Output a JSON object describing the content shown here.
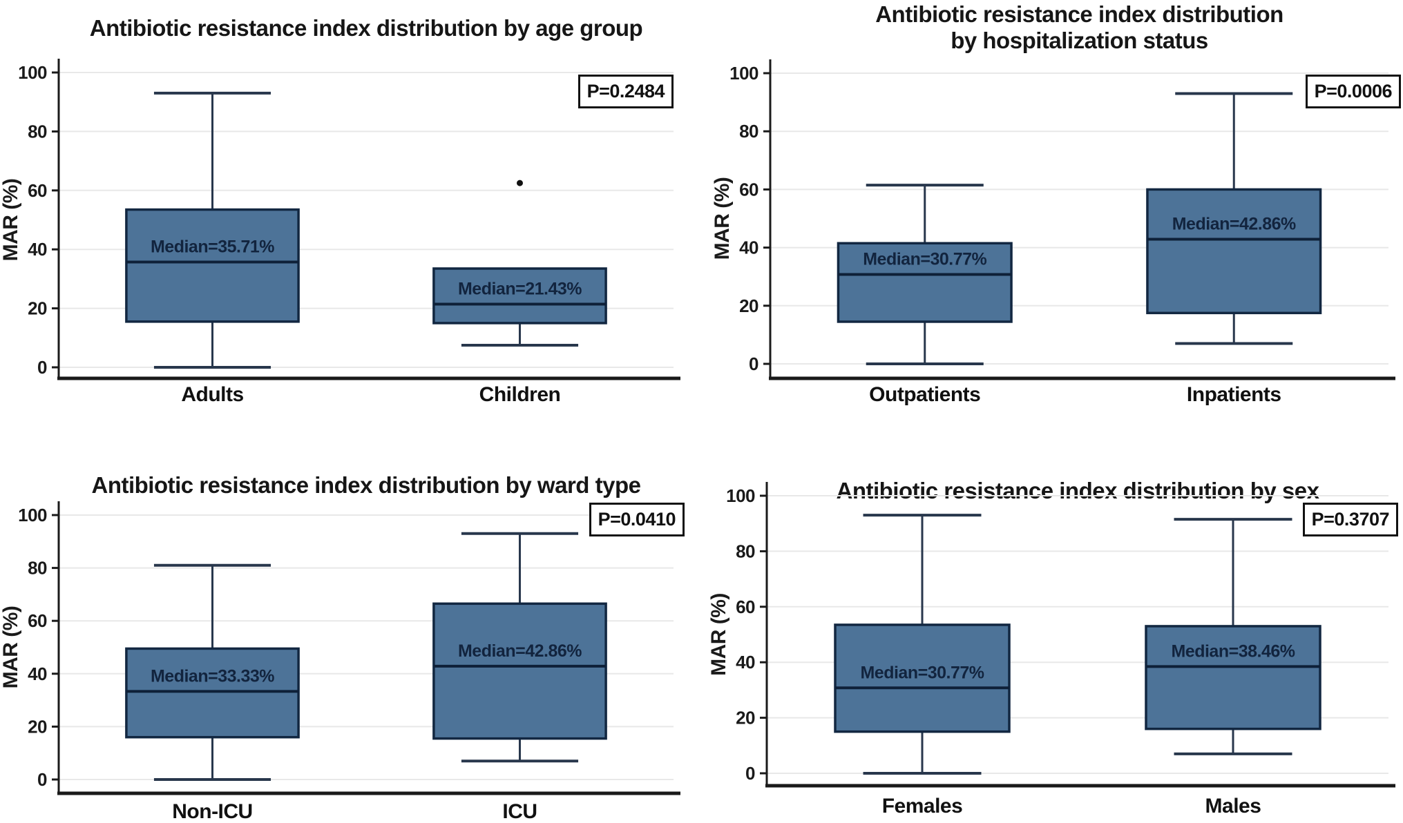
{
  "figure": {
    "background": "#ffffff"
  },
  "styles": {
    "box_fill": "#4d7398",
    "box_border": "#122741",
    "median_color": "#0e2038",
    "median_label_color": "#12243e",
    "whisker_color": "#28374c",
    "grid_color": "#e8e8e8",
    "axis_color": "#1a1a1a",
    "tick_label_color": "#1a1a1a",
    "category_label_color": "#111111",
    "outlier_color": "#111111",
    "p_box_border": "#111111"
  },
  "chart_data": [
    {
      "type": "box",
      "title": "Antibiotic resistance index distribution by age group",
      "ylabel": "MAR (%)",
      "ylim": [
        0,
        100
      ],
      "yticks": [
        0,
        20,
        40,
        60,
        80,
        100
      ],
      "grid": true,
      "legend": "none",
      "p_label": "P=0.2484",
      "categories": [
        "Adults",
        "Children"
      ],
      "series": [
        {
          "name": "Adults",
          "whisker_low": 0,
          "q1": 15.5,
          "median": 35.71,
          "q3": 53.5,
          "whisker_high": 93,
          "median_label": "Median=35.71%",
          "outliers": []
        },
        {
          "name": "Children",
          "whisker_low": 7.5,
          "q1": 15,
          "median": 21.43,
          "q3": 33.5,
          "whisker_high": 33.5,
          "median_label": "Median=21.43%",
          "outliers": [
            62.5
          ]
        }
      ]
    },
    {
      "type": "box",
      "title": "Antibiotic resistance index distribution by hospitalization status",
      "title_line1": "Antibiotic resistance index distribution",
      "title_line2": "by hospitalization status",
      "ylabel": "MAR (%)",
      "ylim": [
        0,
        100
      ],
      "yticks": [
        0,
        20,
        40,
        60,
        80,
        100
      ],
      "grid": true,
      "legend": "none",
      "p_label": "P=0.0006",
      "categories": [
        "Outpatients",
        "Inpatients"
      ],
      "series": [
        {
          "name": "Outpatients",
          "whisker_low": 0,
          "q1": 14.5,
          "median": 30.77,
          "q3": 41.5,
          "whisker_high": 61.5,
          "median_label": "Median=30.77%",
          "outliers": []
        },
        {
          "name": "Inpatients",
          "whisker_low": 7,
          "q1": 17.5,
          "median": 42.86,
          "q3": 60,
          "whisker_high": 93,
          "median_label": "Median=42.86%",
          "outliers": []
        }
      ]
    },
    {
      "type": "box",
      "title": "Antibiotic resistance index distribution by ward type",
      "ylabel": "MAR (%)",
      "ylim": [
        0,
        100
      ],
      "yticks": [
        0,
        20,
        40,
        60,
        80,
        100
      ],
      "grid": true,
      "legend": "none",
      "p_label": "P=0.0410",
      "categories": [
        "Non-ICU",
        "ICU"
      ],
      "series": [
        {
          "name": "Non-ICU",
          "whisker_low": 0,
          "q1": 16,
          "median": 33.33,
          "q3": 49.5,
          "whisker_high": 81,
          "median_label": "Median=33.33%",
          "outliers": []
        },
        {
          "name": "ICU",
          "whisker_low": 7,
          "q1": 15.5,
          "median": 42.86,
          "q3": 66.5,
          "whisker_high": 93,
          "median_label": "Median=42.86%",
          "outliers": []
        }
      ]
    },
    {
      "type": "box",
      "title": "Antibiotic resistance index distribution by sex",
      "ylabel": "MAR (%)",
      "ylim": [
        0,
        100
      ],
      "yticks": [
        0,
        20,
        40,
        60,
        80,
        100
      ],
      "grid": true,
      "legend": "none",
      "p_label": "P=0.3707",
      "categories": [
        "Females",
        "Males"
      ],
      "series": [
        {
          "name": "Females",
          "whisker_low": 0,
          "q1": 15,
          "median": 30.77,
          "q3": 53.5,
          "whisker_high": 93,
          "median_label": "Median=30.77%",
          "outliers": []
        },
        {
          "name": "Males",
          "whisker_low": 7,
          "q1": 16,
          "median": 38.46,
          "q3": 53,
          "whisker_high": 91.5,
          "median_label": "Median=38.46%",
          "outliers": []
        }
      ]
    }
  ]
}
